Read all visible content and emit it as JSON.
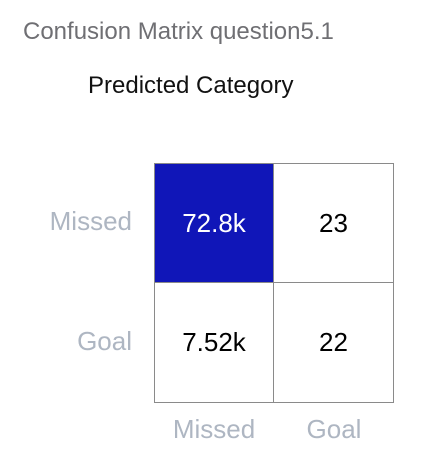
{
  "chart_data": {
    "type": "heatmap",
    "title": "Confusion Matrix question5.1",
    "subtitle": "Predicted Category",
    "row_labels": [
      "Missed",
      "Goal"
    ],
    "col_labels": [
      "Missed",
      "Goal"
    ],
    "cells": [
      [
        {
          "label": "72.8k",
          "value": 72800
        },
        {
          "label": "23",
          "value": 23
        }
      ],
      [
        {
          "label": "7.52k",
          "value": 7520
        },
        {
          "label": "22",
          "value": 22
        }
      ]
    ],
    "colors": {
      "high": "#1016b8",
      "low": "#ffffff",
      "text_on_high": "#ffffff",
      "text_default": "#000000"
    }
  }
}
